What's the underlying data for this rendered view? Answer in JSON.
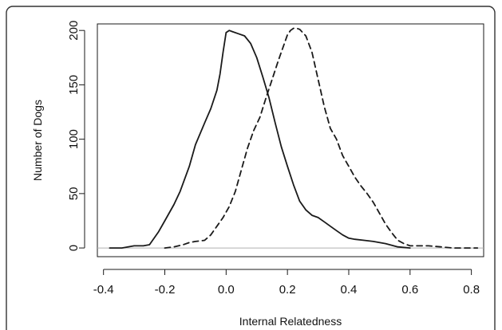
{
  "chart_data": {
    "type": "line",
    "title": "",
    "xlabel": "Internal Relatedness",
    "ylabel": "Number of Dogs",
    "xlim": [
      -0.42,
      0.84
    ],
    "ylim": [
      -8,
      206
    ],
    "xticks": [
      -0.4,
      -0.2,
      0.0,
      0.2,
      0.4,
      0.6,
      0.8
    ],
    "xtick_labels": [
      "-0.4",
      "-0.2",
      "0.0",
      "0.2",
      "0.4",
      "0.6",
      "0.8"
    ],
    "yticks": [
      0,
      50,
      100,
      150,
      200
    ],
    "ytick_labels": [
      "0",
      "50",
      "100",
      "150",
      "200"
    ],
    "baseline": 0,
    "baseline_color": "#b0b0b0",
    "grid": false,
    "legend": false,
    "series": [
      {
        "style": "solid",
        "color": "#1a1a1a",
        "x": [
          -0.38,
          -0.34,
          -0.3,
          -0.27,
          -0.25,
          -0.22,
          -0.2,
          -0.17,
          -0.15,
          -0.12,
          -0.1,
          -0.07,
          -0.05,
          -0.03,
          -0.02,
          -0.01,
          0.0,
          0.01,
          0.02,
          0.04,
          0.06,
          0.08,
          0.1,
          0.12,
          0.14,
          0.16,
          0.18,
          0.2,
          0.22,
          0.24,
          0.26,
          0.28,
          0.3,
          0.32,
          0.34,
          0.36,
          0.38,
          0.4,
          0.42,
          0.45,
          0.48,
          0.52,
          0.56,
          0.6
        ],
        "y": [
          0,
          0,
          2,
          2,
          3,
          15,
          25,
          40,
          52,
          75,
          95,
          115,
          128,
          145,
          160,
          180,
          198,
          200,
          199,
          197,
          195,
          188,
          175,
          157,
          138,
          115,
          93,
          75,
          58,
          43,
          35,
          30,
          28,
          24,
          20,
          16,
          12,
          9,
          8,
          7,
          6,
          4,
          1,
          0
        ]
      },
      {
        "style": "dashed",
        "color": "#1a1a1a",
        "x": [
          -0.2,
          -0.17,
          -0.14,
          -0.12,
          -0.1,
          -0.07,
          -0.05,
          -0.03,
          -0.01,
          0.01,
          0.03,
          0.05,
          0.07,
          0.09,
          0.11,
          0.13,
          0.15,
          0.17,
          0.19,
          0.2,
          0.21,
          0.22,
          0.23,
          0.24,
          0.26,
          0.28,
          0.3,
          0.32,
          0.34,
          0.36,
          0.38,
          0.4,
          0.42,
          0.44,
          0.46,
          0.48,
          0.5,
          0.52,
          0.54,
          0.56,
          0.58,
          0.6,
          0.62,
          0.66,
          0.7,
          0.74,
          0.78,
          0.82
        ],
        "y": [
          0,
          1,
          3,
          5,
          6,
          7,
          12,
          20,
          28,
          38,
          52,
          72,
          92,
          108,
          120,
          138,
          155,
          172,
          188,
          196,
          200,
          202,
          202,
          201,
          195,
          180,
          155,
          130,
          110,
          100,
          85,
          75,
          65,
          57,
          50,
          42,
          32,
          22,
          14,
          7,
          4,
          2,
          2,
          2,
          1,
          0,
          0,
          0
        ]
      }
    ]
  }
}
